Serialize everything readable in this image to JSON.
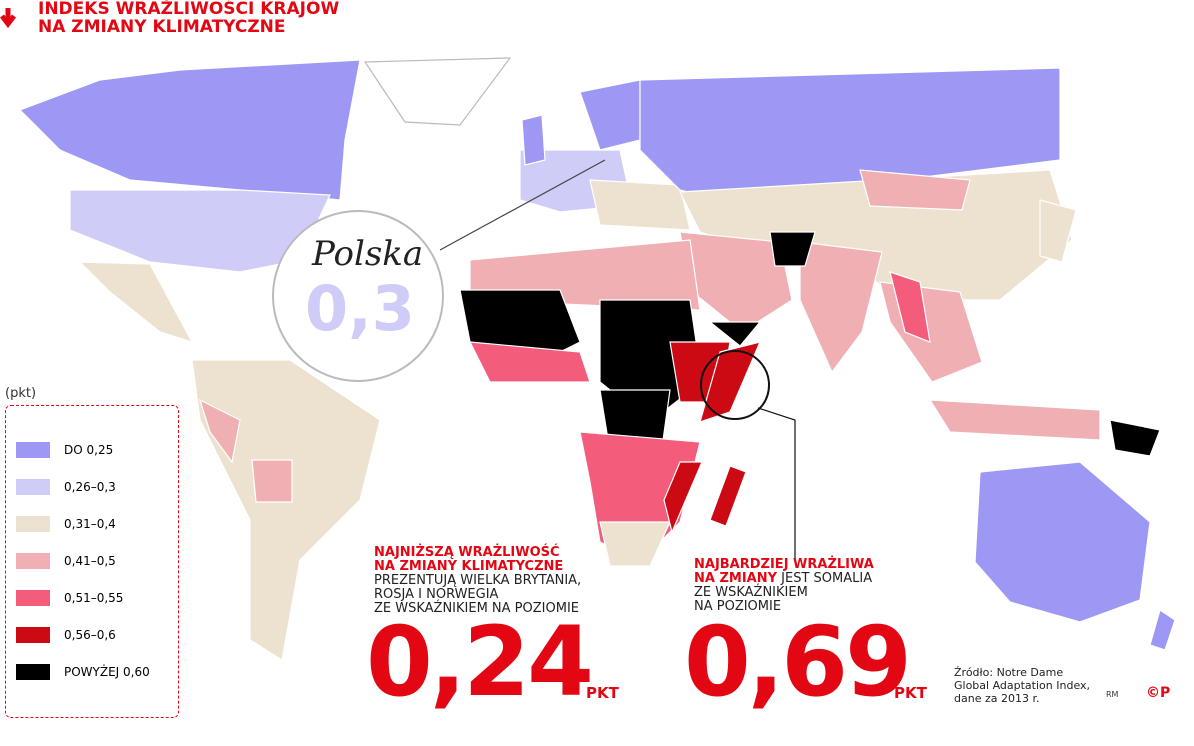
{
  "header": {
    "title_lines": [
      "INDEKS WRAŻLIWOŚCI KRAJÓW",
      "NA ZMIANY KLIMATYCZNE"
    ]
  },
  "callout": {
    "country": "Polska",
    "value": "0,3"
  },
  "legend": {
    "unit": "(pkt)",
    "items": [
      {
        "label": "DO 0,25",
        "color": "#9c98f4"
      },
      {
        "label": "0,26–0,3",
        "color": "#cfcdf8"
      },
      {
        "label": "0,31–0,4",
        "color": "#ede2d0"
      },
      {
        "label": "0,41–0,5",
        "color": "#f0afb3"
      },
      {
        "label": "0,51–0,55",
        "color": "#f45c7c"
      },
      {
        "label": "0,56–0,6",
        "color": "#cc0a14"
      },
      {
        "label": "POWYŻEJ 0,60",
        "color": "#000000"
      }
    ]
  },
  "notes": [
    {
      "heading_lines": [
        "NAJNIŻSZĄ WRAŻLIWOŚĆ",
        "NA ZMIANY KLIMATYCZNE"
      ],
      "body_lines": [
        "PREZENTUJĄ WIELKA BRYTANIA,",
        "ROSJA I NORWEGIA",
        "ZE WSKAŹNIKIEM NA POZIOMIE"
      ],
      "value": "0,24",
      "unit": "PKT"
    },
    {
      "heading_lines": [
        "NAJBARDZIEJ WRAŻLIWA",
        "NA ZMIANY"
      ],
      "body_lines": [
        "JEST SOMALIA",
        "ZE WSKAŹNIKIEM",
        "NA POZIOMIE"
      ],
      "value": "0,69",
      "unit": "PKT"
    }
  ],
  "source": {
    "lines": [
      "Źródło: Notre Dame",
      "Global Adaptation Index,",
      "dane za 2013 r."
    ],
    "author": "RM",
    "logo": "©P"
  }
}
